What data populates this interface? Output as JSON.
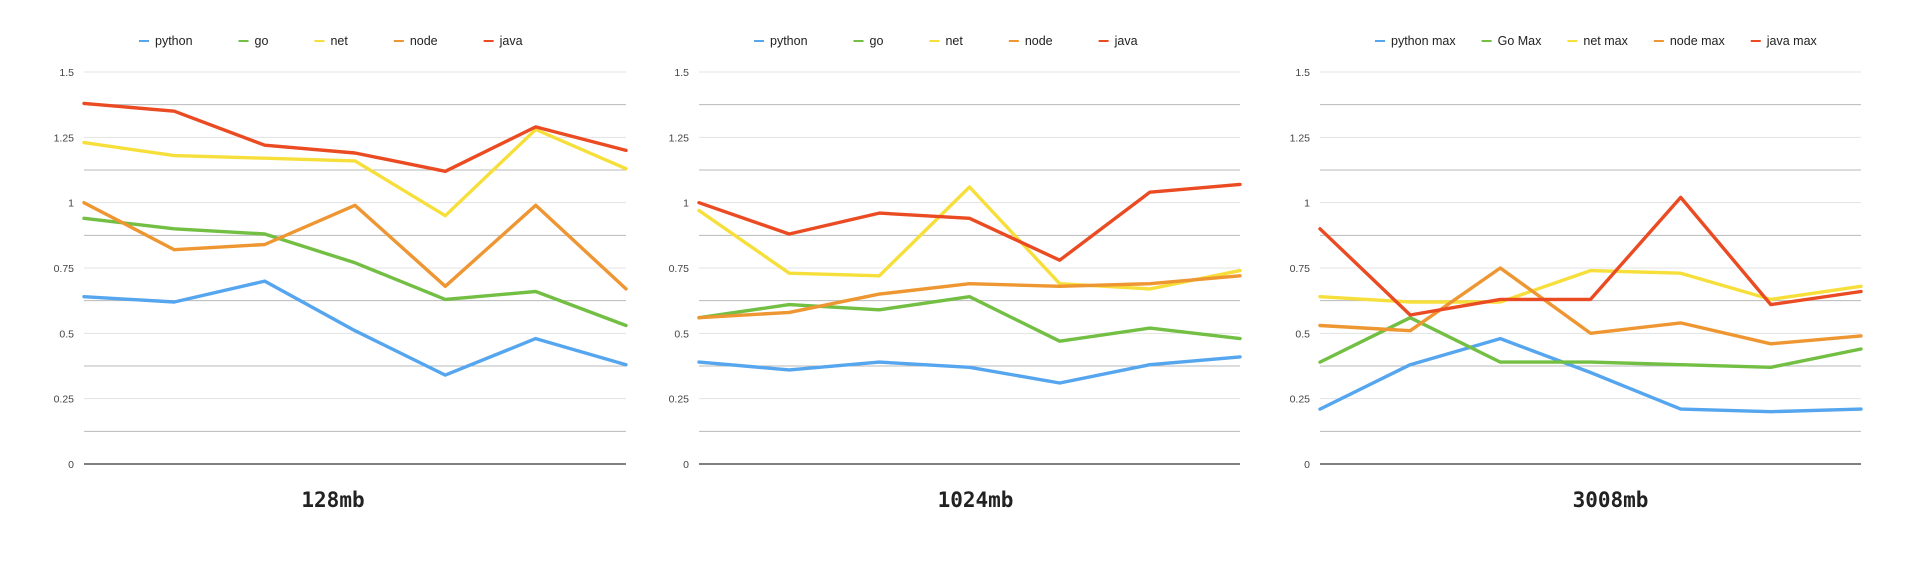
{
  "colors": {
    "python": "#55a6ee",
    "go": "#72bf44",
    "net": "#f7df3b",
    "node": "#ee9632",
    "java": "#ea4b22"
  },
  "chart_data": [
    {
      "type": "line",
      "title": "128mb",
      "ylim": [
        0,
        1.5
      ],
      "yticks": [
        "0",
        "0.25",
        "0.5",
        "0.75",
        "1",
        "1.25",
        "1.5"
      ],
      "legend_position": "top",
      "grid": true,
      "series": [
        {
          "name": "python",
          "color": "#55a6ee",
          "values": [
            0.64,
            0.62,
            0.7,
            0.51,
            0.34,
            0.48,
            0.38
          ]
        },
        {
          "name": "go",
          "color": "#72bf44",
          "values": [
            0.94,
            0.9,
            0.88,
            0.77,
            0.63,
            0.66,
            0.53
          ]
        },
        {
          "name": "net",
          "color": "#f7df3b",
          "values": [
            1.23,
            1.18,
            1.17,
            1.16,
            0.95,
            1.28,
            1.13
          ]
        },
        {
          "name": "node",
          "color": "#ee9632",
          "values": [
            1.0,
            0.82,
            0.84,
            0.99,
            0.68,
            0.99,
            0.67
          ]
        },
        {
          "name": "java",
          "color": "#ea4b22",
          "values": [
            1.38,
            1.35,
            1.22,
            1.19,
            1.12,
            1.29,
            1.2
          ]
        }
      ]
    },
    {
      "type": "line",
      "title": "1024mb",
      "ylim": [
        0,
        1.5
      ],
      "yticks": [
        "0",
        "0.25",
        "0.5",
        "0.75",
        "1",
        "1.25",
        "1.5"
      ],
      "legend_position": "top",
      "grid": true,
      "series": [
        {
          "name": "python",
          "color": "#55a6ee",
          "values": [
            0.39,
            0.36,
            0.39,
            0.37,
            0.31,
            0.38,
            0.41
          ]
        },
        {
          "name": "go",
          "color": "#72bf44",
          "values": [
            0.56,
            0.61,
            0.59,
            0.64,
            0.47,
            0.52,
            0.48
          ]
        },
        {
          "name": "net",
          "color": "#f7df3b",
          "values": [
            0.97,
            0.73,
            0.72,
            1.06,
            0.69,
            0.67,
            0.74
          ]
        },
        {
          "name": "node",
          "color": "#ee9632",
          "values": [
            0.56,
            0.58,
            0.65,
            0.69,
            0.68,
            0.69,
            0.72
          ]
        },
        {
          "name": "java",
          "color": "#ea4b22",
          "values": [
            1.0,
            0.88,
            0.96,
            0.94,
            0.78,
            1.04,
            1.07
          ]
        }
      ]
    },
    {
      "type": "line",
      "title": "3008mb",
      "ylim": [
        0,
        1.5
      ],
      "yticks": [
        "0",
        "0.25",
        "0.5",
        "0.75",
        "1",
        "1.25",
        "1.5"
      ],
      "legend_position": "top",
      "grid": true,
      "series": [
        {
          "name": "python max",
          "color": "#55a6ee",
          "values": [
            0.21,
            0.38,
            0.48,
            0.35,
            0.21,
            0.2,
            0.21
          ]
        },
        {
          "name": "Go Max",
          "color": "#72bf44",
          "values": [
            0.39,
            0.56,
            0.39,
            0.39,
            0.38,
            0.37,
            0.44
          ]
        },
        {
          "name": "net max",
          "color": "#f7df3b",
          "values": [
            0.64,
            0.62,
            0.62,
            0.74,
            0.73,
            0.63,
            0.68
          ]
        },
        {
          "name": "node max",
          "color": "#ee9632",
          "values": [
            0.53,
            0.51,
            0.75,
            0.5,
            0.54,
            0.46,
            0.49
          ]
        },
        {
          "name": "java max",
          "color": "#ea4b22",
          "values": [
            0.9,
            0.57,
            0.63,
            0.63,
            1.02,
            0.61,
            0.66
          ]
        }
      ]
    }
  ]
}
